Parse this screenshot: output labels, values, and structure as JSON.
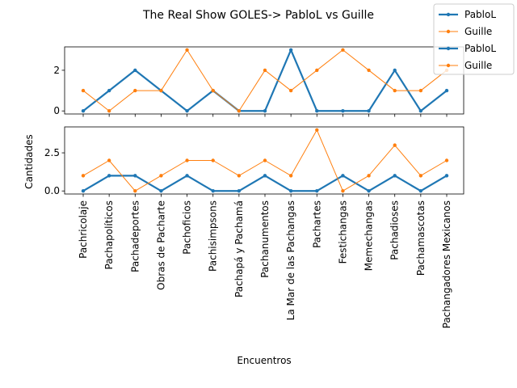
{
  "figure": {
    "title": "The Real Show GOLES-> PabloL vs Guille",
    "ylabel": "Cantidades",
    "xlabel": "Encuentros"
  },
  "legend": {
    "placement": "upper-right",
    "entries": [
      {
        "label": "PabloL",
        "color": "#1f77b4"
      },
      {
        "label": "Guille",
        "color": "#ff7f0e"
      },
      {
        "label": "PabloL",
        "color": "#1f77b4"
      },
      {
        "label": "Guille",
        "color": "#ff7f0e"
      }
    ]
  },
  "chart_data": [
    {
      "type": "line",
      "categories": [
        "Pachricolaje",
        "Pachapolíticos",
        "Pachadeportes",
        "Obras de Pacharte",
        "Pachoficios",
        "Pachisimpsons",
        "Pachapá y Pachamá",
        "Pachanumentos",
        "La Mar de las Pachangas",
        "Pachartes",
        "Festichangas",
        "Memechangas",
        "Pachadioses",
        "Pachamascotas",
        "Pachangadores Mexicanos"
      ],
      "ylim": [
        -0.15,
        3.15
      ],
      "yticks": [
        0,
        2
      ],
      "ytick_labels": [
        "0",
        "2"
      ],
      "grid": false,
      "series": [
        {
          "name": "PabloL",
          "color": "#1f77b4",
          "values": [
            0,
            1,
            2,
            1,
            0,
            1,
            0,
            0,
            3,
            0,
            0,
            0,
            2,
            0,
            1
          ]
        },
        {
          "name": "Guille",
          "color": "#ff7f0e",
          "values": [
            1,
            0,
            1,
            1,
            3,
            1,
            0,
            2,
            1,
            2,
            3,
            2,
            1,
            1,
            2
          ]
        }
      ]
    },
    {
      "type": "line",
      "categories": [
        "Pachricolaje",
        "Pachapolíticos",
        "Pachadeportes",
        "Obras de Pacharte",
        "Pachoficios",
        "Pachisimpsons",
        "Pachapá y Pachamá",
        "Pachanumentos",
        "La Mar de las Pachangas",
        "Pachartes",
        "Festichangas",
        "Memechangas",
        "Pachadioses",
        "Pachamascotas",
        "Pachangadores Mexicanos"
      ],
      "ylim": [
        -0.2,
        4.2
      ],
      "yticks": [
        0,
        2.5
      ],
      "ytick_labels": [
        "0.0",
        "2.5"
      ],
      "grid": false,
      "series": [
        {
          "name": "PabloL",
          "color": "#1f77b4",
          "values": [
            0,
            1,
            1,
            0,
            1,
            0,
            0,
            1,
            0,
            0,
            1,
            0,
            1,
            0,
            1
          ]
        },
        {
          "name": "Guille",
          "color": "#ff7f0e",
          "values": [
            1,
            2,
            0,
            1,
            2,
            2,
            1,
            2,
            1,
            4,
            0,
            1,
            3,
            1,
            2
          ]
        }
      ]
    }
  ]
}
